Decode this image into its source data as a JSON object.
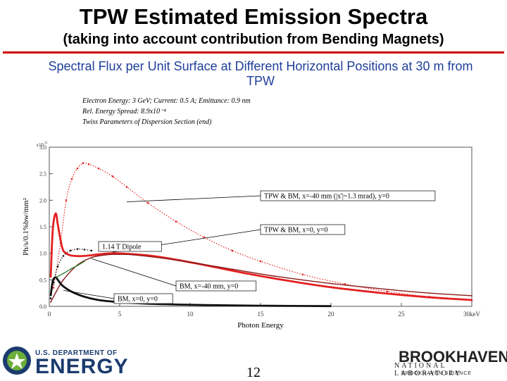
{
  "slide": {
    "title": "TPW Estimated Emission Spectra",
    "subtitle": "(taking into account contribution from Bending Magnets)",
    "heading": "Spectral Flux per Unit Surface at Different Horizontal Positions at 30 m from TPW",
    "params": [
      "Electron Energy: 3 GeV;  Current: 0.5 A; Emittance: 0.9 nm",
      "Rel. Energy Spread: 8.9x10⁻⁴",
      "Twiss Parameters of Dispersion Section (end)"
    ],
    "page_number": "12"
  },
  "footer": {
    "doe_top": "U.S. DEPARTMENT OF",
    "doe_energy": "ENERGY",
    "bnl_name": "BROOKHAVEN",
    "bnl_sub": "NATIONAL LABORATORY",
    "bnl_tag": "BROOKHAVEN SCIENCE"
  },
  "colors": {
    "title_rule": "#cc0000",
    "heading": "#1f3f9a",
    "series_red": "#e32020",
    "series_black": "#111111",
    "series_green": "#2e7d32",
    "series_darkred": "#8b1a1a",
    "doe_blue": "#1b3b6e",
    "doe_green": "#6cae3a"
  },
  "chart_data": {
    "type": "line",
    "xlabel": "Photon Energy",
    "ylabel": "Ph/s/0.1%bw/mm²",
    "xlim": [
      0,
      30
    ],
    "ylim": [
      0,
      3.0
    ],
    "y_multiplier_label": "x10",
    "y_multiplier_exp": "11",
    "x_ticks": [
      0,
      5,
      10,
      15,
      20,
      25,
      30
    ],
    "x_tick_labels": [
      "0",
      "5",
      "10",
      "15",
      "20",
      "25",
      "30keV"
    ],
    "y_ticks": [
      0.0,
      0.5,
      1.0,
      1.5,
      2.0,
      2.5,
      3.0
    ],
    "y_tick_labels": [
      "0.0",
      "0.5",
      "1.0",
      "1.5",
      "2.0",
      "2.5",
      "3.0"
    ],
    "series": [
      {
        "name": "TPW & BM, x=-40 mm (|x'|~1.3 mrad), y=0",
        "style": "dots",
        "color": "#e32020",
        "x": [
          0.3,
          0.8,
          1.2,
          1.6,
          2.0,
          2.4,
          2.8,
          3.5,
          4.5,
          5.5,
          7,
          9,
          11,
          13,
          15,
          18,
          21,
          24,
          27,
          30
        ],
        "y": [
          0.35,
          1.2,
          2.0,
          2.4,
          2.6,
          2.7,
          2.68,
          2.6,
          2.45,
          2.25,
          1.95,
          1.6,
          1.3,
          1.05,
          0.85,
          0.6,
          0.42,
          0.28,
          0.18,
          0.11
        ]
      },
      {
        "name": "TPW & BM, x=0, y=0",
        "style": "thick",
        "color": "#e32020",
        "x": [
          0.1,
          0.25,
          0.45,
          0.6,
          0.8,
          1.0,
          1.4,
          1.8,
          2.5,
          3.5,
          4.5,
          5.5,
          7,
          9,
          11,
          14,
          17,
          20,
          24,
          27,
          30
        ],
        "y": [
          0.55,
          1.45,
          1.75,
          1.55,
          1.25,
          1.05,
          0.97,
          0.95,
          0.95,
          0.98,
          1.0,
          0.99,
          0.96,
          0.88,
          0.78,
          0.62,
          0.48,
          0.36,
          0.24,
          0.17,
          0.12
        ]
      },
      {
        "name": "1.14 T Dipole",
        "style": "dots",
        "color": "#111111",
        "x": [
          0.1,
          0.3,
          0.6,
          1.0,
          1.5,
          2.0,
          2.5,
          3.0
        ],
        "y": [
          0.15,
          0.45,
          0.75,
          0.95,
          1.05,
          1.08,
          1.07,
          1.05
        ]
      },
      {
        "name": "BM, x=-40 mm, y=0",
        "style": "thin",
        "color": "#8b1a1a",
        "x": [
          0.1,
          0.5,
          1.0,
          2.0,
          3.0,
          4.0,
          5.0,
          6.0,
          8,
          10,
          13,
          16,
          20,
          24,
          27,
          30
        ],
        "y": [
          0.08,
          0.28,
          0.5,
          0.78,
          0.92,
          0.97,
          0.98,
          0.97,
          0.91,
          0.83,
          0.7,
          0.57,
          0.43,
          0.32,
          0.25,
          0.2
        ]
      },
      {
        "name": "BM, x=0, y=0",
        "style": "thick",
        "color": "#111111",
        "x": [
          0.1,
          0.25,
          0.45,
          0.6,
          0.9,
          1.3,
          1.8,
          2.5,
          3.5,
          4.5,
          5.5,
          7,
          9,
          11,
          13,
          15,
          17,
          20
        ],
        "y": [
          0.2,
          0.48,
          0.55,
          0.5,
          0.4,
          0.32,
          0.25,
          0.18,
          0.12,
          0.09,
          0.07,
          0.05,
          0.035,
          0.025,
          0.018,
          0.012,
          0.008,
          0.004
        ]
      },
      {
        "name": "green",
        "style": "thin",
        "color": "#2e7d32",
        "x": [
          0.5,
          1.0,
          1.5,
          2.0,
          2.5
        ],
        "y": [
          0.55,
          0.62,
          0.7,
          0.77,
          0.85
        ]
      }
    ],
    "annotations": [
      {
        "text": "TPW & BM, x=-40 mm (|x'|~1.3 mrad), y=0"
      },
      {
        "text": "TPW & BM, x=0, y=0"
      },
      {
        "text": "1.14 T Dipole"
      },
      {
        "text": "BM, x=-40 mm, y=0"
      },
      {
        "text": "BM, x=0, y=0"
      }
    ]
  }
}
